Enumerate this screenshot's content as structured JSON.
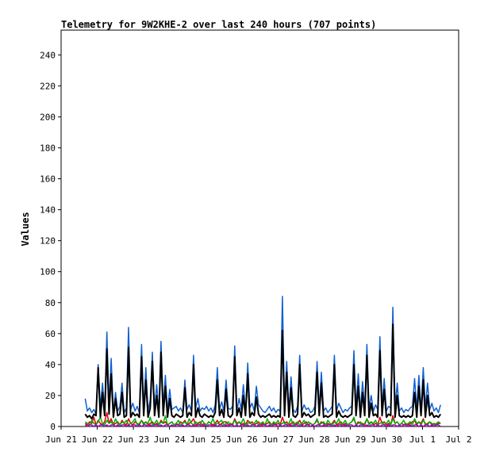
{
  "chart_data": {
    "type": "line",
    "title": "Telemetry for 9W2KHE-2 over last 240 hours (707 points)",
    "xlabel": "",
    "ylabel": "Values",
    "ylim": [
      0,
      256
    ],
    "yticks": [
      0,
      20,
      40,
      60,
      80,
      100,
      120,
      140,
      160,
      180,
      200,
      220,
      240
    ],
    "xlim": [
      "Jun 21",
      "Jul 2"
    ],
    "xticks": [
      "Jun 21",
      "Jun 22",
      "Jun 23",
      "Jun 24",
      "Jun 25",
      "Jun 26",
      "Jun 27",
      "Jun 28",
      "Jun 29",
      "Jun 30",
      "Jul 1",
      "Jul 2"
    ],
    "grid": false,
    "legend": "none",
    "series": [
      {
        "color": "#1060d0",
        "x_start": "Jun 21 16:00",
        "x_end": "Jul 1 12:00",
        "values": [
          18,
          10,
          12,
          9,
          11,
          8,
          40,
          12,
          28,
          10,
          61,
          14,
          44,
          9,
          22,
          10,
          13,
          28,
          9,
          12,
          64,
          11,
          15,
          10,
          13,
          9,
          53,
          12,
          38,
          10,
          17,
          48,
          11,
          27,
          9,
          55,
          12,
          33,
          10,
          24,
          11,
          12,
          13,
          10,
          12,
          9,
          30,
          11,
          14,
          10,
          46,
          12,
          18,
          10,
          12,
          11,
          13,
          10,
          12,
          9,
          14,
          38,
          11,
          16,
          10,
          30,
          12,
          11,
          13,
          52,
          10,
          18,
          11,
          27,
          9,
          41,
          12,
          15,
          10,
          26,
          14,
          12,
          10,
          9,
          11,
          13,
          10,
          12,
          9,
          11,
          10,
          84,
          12,
          42,
          10,
          32,
          11,
          9,
          13,
          46,
          10,
          14,
          11,
          12,
          9,
          10,
          13,
          42,
          11,
          35,
          10,
          12,
          9,
          11,
          13,
          46,
          10,
          15,
          12,
          9,
          11,
          10,
          12,
          13,
          49,
          12,
          34,
          10,
          29,
          11,
          53,
          12,
          20,
          10,
          14,
          11,
          58,
          12,
          31,
          10,
          13,
          12,
          77,
          11,
          28,
          10,
          12,
          9,
          11,
          10,
          12,
          13,
          31,
          11,
          33,
          10,
          38,
          12,
          28,
          11,
          15,
          10,
          12,
          9,
          14
        ]
      },
      {
        "color": "#000000",
        "x_start": "Jun 21 16:00",
        "x_end": "Jul 1 12:00",
        "values": [
          8,
          6,
          7,
          5,
          8,
          7,
          38,
          6,
          22,
          7,
          50,
          8,
          34,
          6,
          18,
          7,
          8,
          22,
          6,
          7,
          51,
          6,
          9,
          7,
          8,
          6,
          45,
          7,
          30,
          6,
          12,
          42,
          7,
          20,
          6,
          48,
          7,
          26,
          6,
          18,
          7,
          6,
          8,
          7,
          6,
          7,
          25,
          6,
          9,
          7,
          40,
          6,
          12,
          7,
          6,
          8,
          7,
          6,
          7,
          6,
          9,
          30,
          7,
          11,
          6,
          24,
          7,
          6,
          8,
          45,
          7,
          12,
          6,
          20,
          7,
          34,
          6,
          9,
          7,
          19,
          8,
          6,
          7,
          6,
          7,
          8,
          6,
          7,
          6,
          7,
          6,
          62,
          7,
          35,
          6,
          25,
          7,
          6,
          8,
          40,
          6,
          9,
          7,
          8,
          6,
          7,
          8,
          35,
          7,
          28,
          6,
          7,
          6,
          7,
          8,
          40,
          6,
          10,
          7,
          6,
          7,
          6,
          7,
          8,
          40,
          7,
          26,
          6,
          22,
          7,
          46,
          6,
          15,
          7,
          8,
          6,
          49,
          7,
          24,
          6,
          8,
          7,
          66,
          6,
          20,
          7,
          6,
          7,
          6,
          7,
          6,
          7,
          22,
          6,
          26,
          7,
          30,
          6,
          20,
          7,
          9,
          6,
          7,
          6,
          8
        ]
      },
      {
        "color": "#e00000",
        "x_start": "Jun 21 16:00",
        "x_end": "Jul 1 12:00",
        "values": [
          2,
          1,
          3,
          2,
          6,
          1,
          4,
          2,
          1,
          3,
          9,
          2,
          5,
          1,
          2,
          3,
          1,
          4,
          2,
          1,
          5,
          2,
          1,
          3,
          2,
          1,
          4,
          2,
          3,
          1,
          2,
          3,
          1,
          2,
          1,
          4,
          2,
          3,
          1,
          2,
          3,
          1,
          2,
          1,
          3,
          2,
          4,
          1,
          2,
          3,
          5,
          1,
          2,
          3,
          1,
          2,
          1,
          3,
          2,
          1,
          2,
          4,
          1,
          2,
          3,
          3,
          1,
          2,
          1,
          5,
          2,
          3,
          1,
          2,
          1,
          4,
          2,
          3,
          1,
          2,
          3,
          1,
          2,
          1,
          2,
          3,
          1,
          2,
          1,
          2,
          1,
          6,
          2,
          3,
          1,
          2,
          3,
          1,
          2,
          4,
          1,
          2,
          3,
          1,
          2,
          1,
          2,
          4,
          1,
          3,
          2,
          1,
          2,
          1,
          2,
          4,
          1,
          2,
          3,
          1,
          2,
          1,
          2,
          3,
          5,
          1,
          3,
          2,
          2,
          1,
          5,
          2,
          3,
          1,
          2,
          1,
          6,
          2,
          3,
          1,
          2,
          1,
          7,
          2,
          3,
          1,
          2,
          1,
          2,
          1,
          2,
          3,
          4,
          1,
          3,
          2,
          5,
          1,
          2,
          3,
          1,
          2,
          1,
          2,
          2
        ]
      },
      {
        "color": "#00b000",
        "x_start": "Jun 21 16:00",
        "x_end": "Jul 1 12:00",
        "values": [
          3,
          2,
          1,
          4,
          2,
          1,
          3,
          6,
          2,
          1,
          4,
          2,
          3,
          1,
          5,
          2,
          1,
          3,
          2,
          4,
          1,
          2,
          3,
          5,
          1,
          2,
          4,
          1,
          3,
          2,
          6,
          1,
          2,
          4,
          1,
          3,
          2,
          7,
          1,
          2,
          3,
          1,
          2,
          4,
          1,
          2,
          3,
          1,
          5,
          2,
          1,
          3,
          2,
          1,
          4,
          2,
          1,
          3,
          2,
          5,
          1,
          2,
          3,
          4,
          1,
          2,
          3,
          1,
          2,
          4,
          1,
          3,
          2,
          5,
          1,
          2,
          3,
          1,
          2,
          4,
          1,
          2,
          3,
          1,
          5,
          2,
          1,
          3,
          2,
          4,
          1,
          2,
          3,
          1,
          2,
          5,
          1,
          2,
          3,
          1,
          2,
          4,
          1,
          3,
          2,
          1,
          2,
          5,
          1,
          2,
          3,
          1,
          4,
          2,
          1,
          3,
          2,
          5,
          1,
          2,
          4,
          1,
          2,
          3,
          6,
          1,
          2,
          3,
          1,
          2,
          5,
          1,
          3,
          2,
          4,
          1,
          2,
          3,
          1,
          2,
          4,
          1,
          5,
          2,
          3,
          1,
          2,
          4,
          1,
          2,
          3,
          1,
          5,
          2,
          3,
          1,
          4,
          2,
          1,
          3,
          2,
          1,
          2,
          3,
          2
        ]
      },
      {
        "color": "#a000c0",
        "x_start": "Jun 21 16:00",
        "x_end": "Jul 1 12:00",
        "values": [
          1,
          0,
          1,
          1,
          0,
          1,
          0,
          1,
          1,
          0,
          1,
          0,
          1,
          1,
          0,
          1,
          0,
          1,
          1,
          0,
          1,
          0,
          1,
          1,
          0,
          1,
          0,
          1,
          1,
          0,
          1,
          0,
          1,
          1,
          0,
          1,
          0,
          1,
          1,
          0,
          1,
          0,
          1,
          1,
          0,
          1,
          0,
          1,
          1,
          0,
          1,
          0,
          1,
          1,
          0,
          1,
          0,
          1,
          1,
          0,
          1,
          0,
          1,
          1,
          0,
          1,
          0,
          1,
          1,
          0,
          1,
          0,
          1,
          1,
          0,
          1,
          0,
          1,
          1,
          0,
          1,
          0,
          1,
          1,
          0,
          1,
          0,
          1,
          1,
          0,
          1,
          0,
          1,
          1,
          0,
          1,
          0,
          1,
          1,
          0,
          1,
          0,
          1,
          1,
          0,
          1,
          0,
          1,
          1,
          0,
          1,
          0,
          1,
          1,
          0,
          1,
          0,
          1,
          1,
          0,
          1,
          0,
          1,
          1,
          0,
          1,
          0,
          1,
          1,
          0,
          1,
          0,
          1,
          1,
          0,
          1,
          0,
          1,
          1,
          0,
          1,
          0,
          1,
          1,
          0,
          1,
          0,
          1,
          1,
          0,
          1,
          0,
          1,
          1,
          0,
          1,
          0,
          1,
          1,
          0,
          1,
          0,
          1,
          1,
          0
        ]
      }
    ]
  }
}
